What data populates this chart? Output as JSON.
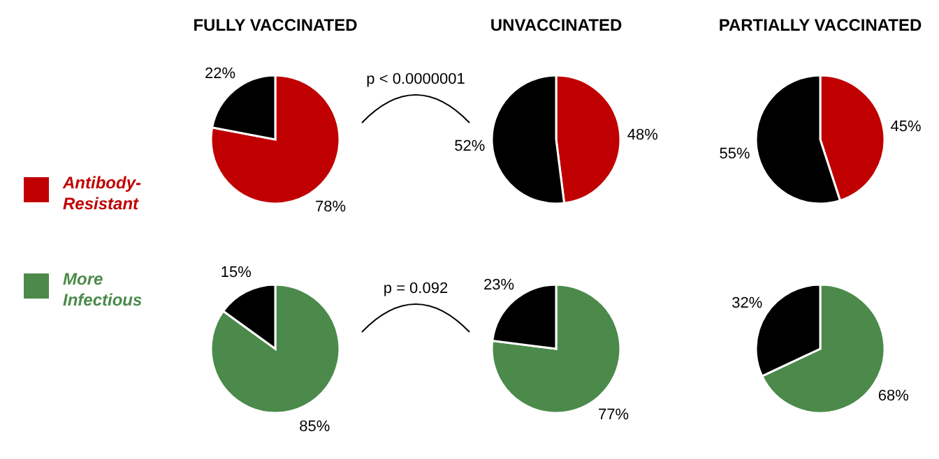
{
  "chart_data": [
    {
      "type": "pie",
      "title": "FULLY VACCINATED",
      "categories": [
        "Antibody-Resistant",
        null
      ],
      "values": [
        78,
        22
      ],
      "colors": [
        "#c00000",
        "#000000"
      ],
      "value_labels": [
        "78%",
        "22%"
      ],
      "legend": "left",
      "annotations": [
        "p < 0.0000001"
      ]
    },
    {
      "type": "pie",
      "title": "UNVACCINATED",
      "categories": [
        null,
        null
      ],
      "values": [
        48,
        52
      ],
      "colors": [
        "#c00000",
        "#000000"
      ],
      "value_labels": [
        "48%",
        "52%"
      ]
    },
    {
      "type": "pie",
      "title": "PARTIALLY VACCINATED",
      "categories": [
        null,
        null
      ],
      "values": [
        45,
        55
      ],
      "colors": [
        "#c00000",
        "#000000"
      ],
      "value_labels": [
        "45%",
        "55%"
      ]
    },
    {
      "type": "pie",
      "categories": [
        "More Infectious",
        null
      ],
      "values": [
        85,
        15
      ],
      "colors": [
        "#4b8a4b",
        "#000000"
      ],
      "value_labels": [
        "85%",
        "15%"
      ],
      "legend": "left",
      "annotations": [
        "p = 0.092"
      ]
    },
    {
      "type": "pie",
      "categories": [
        null,
        null
      ],
      "values": [
        77,
        23
      ],
      "colors": [
        "#4b8a4b",
        "#000000"
      ],
      "value_labels": [
        "77%",
        "23%"
      ]
    },
    {
      "type": "pie",
      "categories": [
        null,
        null
      ],
      "values": [
        68,
        32
      ],
      "colors": [
        "#4b8a4b",
        "#000000"
      ],
      "value_labels": [
        "68%",
        "32%"
      ]
    }
  ]
}
